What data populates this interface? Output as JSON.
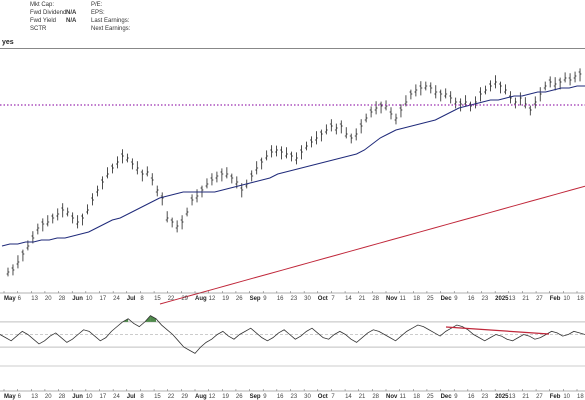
{
  "header": {
    "ticker_suffix": "yes",
    "left_fields": [
      {
        "label": "Mkt Cap:",
        "value": ""
      },
      {
        "label": "Fwd Dividend",
        "value": "N/A"
      },
      {
        "label": "Fwd Yield",
        "value": "N/A"
      },
      {
        "label": "SCTR",
        "value": ""
      }
    ],
    "right_fields": [
      {
        "label": "P/E:"
      },
      {
        "label": "EPS:"
      },
      {
        "label": "Last Earnings:"
      },
      {
        "label": "Next Earnings:"
      }
    ]
  },
  "colors": {
    "price_bar": "#222222",
    "ma_short": "#1f2a7a",
    "ma_long": "#c0273a",
    "support_line": "#9b2db0",
    "osc_line": "#333333",
    "osc_fill": "#4e8a4a",
    "divergence": "#c0273a"
  },
  "chart_data": [
    {
      "type": "line",
      "panel": "price",
      "series": [
        {
          "id": "price",
          "style": "ohlc-bars",
          "values": [
            3,
            4,
            8,
            12,
            16,
            20,
            25,
            27,
            28,
            30,
            32,
            34,
            33,
            30,
            28,
            30,
            34,
            39,
            44,
            48,
            52,
            55,
            58,
            61,
            60,
            57,
            55,
            52,
            53,
            49,
            44,
            40,
            30,
            28,
            26,
            28,
            33,
            39,
            41,
            44,
            47,
            49,
            51,
            52,
            52,
            50,
            48,
            44,
            47,
            51,
            55,
            58,
            61,
            63,
            64,
            63,
            62,
            61,
            60,
            63,
            66,
            68,
            70,
            72,
            74,
            76,
            75,
            76,
            72,
            70,
            72,
            76,
            80,
            83,
            85,
            86,
            86,
            82,
            80,
            84,
            88,
            92,
            94,
            95,
            96,
            95,
            93,
            92,
            92,
            90,
            88,
            87,
            88,
            86,
            88,
            92,
            94,
            96,
            98,
            96,
            94,
            90,
            88,
            90,
            87,
            84,
            88,
            92,
            96,
            98,
            97,
            98,
            100,
            99,
            101,
            102
          ]
        },
        {
          "id": "ma_short",
          "style": "line",
          "values": [
            14,
            15,
            15,
            16,
            16,
            17,
            17,
            18,
            18,
            19,
            20,
            21,
            23,
            25,
            27,
            28,
            30,
            32,
            34,
            36,
            38,
            39,
            40,
            41,
            41,
            41,
            41,
            41,
            42,
            43,
            44,
            45,
            46,
            47,
            48,
            50,
            51,
            52,
            53,
            54,
            55,
            56,
            57,
            58,
            59,
            60,
            62,
            65,
            68,
            70,
            72,
            73,
            74,
            75,
            76,
            77,
            79,
            81,
            83,
            84,
            85,
            86,
            87,
            87,
            88,
            89,
            89,
            90,
            91,
            91,
            92,
            93,
            93,
            94,
            94
          ]
        },
        {
          "id": "ma_long",
          "style": "line",
          "values": [
            0,
            2,
            4,
            6,
            8,
            10,
            12,
            14,
            16,
            18,
            20,
            22,
            24,
            26,
            28,
            30,
            32,
            34,
            36,
            38,
            40,
            42,
            44,
            46,
            48,
            50,
            52,
            54,
            56,
            58,
            60,
            62
          ]
        }
      ],
      "reference_lines": [
        {
          "id": "support",
          "style": "dotted"
        }
      ]
    },
    {
      "type": "area",
      "panel": "oscillator",
      "values": [
        50,
        48,
        46,
        49,
        52,
        50,
        47,
        44,
        46,
        49,
        51,
        48,
        45,
        47,
        50,
        53,
        52,
        49,
        46,
        48,
        52,
        55,
        58,
        60,
        57,
        55,
        58,
        62,
        60,
        56,
        53,
        50,
        46,
        42,
        40,
        38,
        42,
        45,
        47,
        50,
        52,
        49,
        47,
        50,
        52,
        54,
        51,
        48,
        46,
        48,
        51,
        53,
        50,
        47,
        49,
        52,
        54,
        51,
        48,
        47,
        50,
        52,
        50,
        47,
        45,
        48,
        51,
        53,
        52,
        50,
        48,
        46,
        49,
        52,
        54,
        56,
        55,
        53,
        51,
        49,
        52,
        54,
        56,
        55,
        53,
        50,
        48,
        46,
        48,
        50,
        49,
        47,
        46,
        48,
        50,
        49,
        47,
        48,
        50,
        52,
        51,
        49,
        50,
        52,
        51,
        50
      ],
      "reference_lines": [
        {
          "id": "upper"
        },
        {
          "id": "mid"
        },
        {
          "id": "lower"
        }
      ],
      "annotations": [
        {
          "id": "divergence-line",
          "style": "solid-red"
        }
      ]
    }
  ],
  "x_axis_top": [
    {
      "t": "May",
      "b": true
    },
    {
      "t": "6"
    },
    {
      "t": "13"
    },
    {
      "t": "20"
    },
    {
      "t": "28"
    },
    {
      "t": "Jun",
      "b": true
    },
    {
      "t": "10"
    },
    {
      "t": "17"
    },
    {
      "t": "24"
    },
    {
      "t": "Jul",
      "b": true
    },
    {
      "t": "8"
    },
    {
      "t": "15"
    },
    {
      "t": "22"
    },
    {
      "t": "29"
    },
    {
      "t": "Aug",
      "b": true
    },
    {
      "t": "12"
    },
    {
      "t": "19"
    },
    {
      "t": "26"
    },
    {
      "t": "Sep",
      "b": true
    },
    {
      "t": "9"
    },
    {
      "t": "16"
    },
    {
      "t": "23"
    },
    {
      "t": "30"
    },
    {
      "t": "Oct",
      "b": true
    },
    {
      "t": "7"
    },
    {
      "t": "14"
    },
    {
      "t": "21"
    },
    {
      "t": "28"
    },
    {
      "t": "Nov",
      "b": true
    },
    {
      "t": "11"
    },
    {
      "t": "18"
    },
    {
      "t": "25"
    },
    {
      "t": "Dec",
      "b": true
    },
    {
      "t": "9"
    },
    {
      "t": "16"
    },
    {
      "t": "23"
    },
    {
      "t": "2025",
      "b": true
    },
    {
      "t": "13"
    },
    {
      "t": "21"
    },
    {
      "t": "27"
    },
    {
      "t": "Feb",
      "b": true
    },
    {
      "t": "10"
    },
    {
      "t": "18"
    }
  ],
  "x_axis_bottom": [
    {
      "t": "May",
      "b": true
    },
    {
      "t": "6"
    },
    {
      "t": "13"
    },
    {
      "t": "20"
    },
    {
      "t": "28"
    },
    {
      "t": "Jun",
      "b": true
    },
    {
      "t": "10"
    },
    {
      "t": "17"
    },
    {
      "t": "24"
    },
    {
      "t": "Jul",
      "b": true
    },
    {
      "t": "8"
    },
    {
      "t": "15"
    },
    {
      "t": "22"
    },
    {
      "t": "29"
    },
    {
      "t": "Aug",
      "b": true
    },
    {
      "t": "12"
    },
    {
      "t": "19"
    },
    {
      "t": "26"
    },
    {
      "t": "Sep",
      "b": true
    },
    {
      "t": "9"
    },
    {
      "t": "16"
    },
    {
      "t": "23"
    },
    {
      "t": "30"
    },
    {
      "t": "Oct",
      "b": true
    },
    {
      "t": "7"
    },
    {
      "t": "14"
    },
    {
      "t": "21"
    },
    {
      "t": "28"
    },
    {
      "t": "Nov",
      "b": true
    },
    {
      "t": "11"
    },
    {
      "t": "18"
    },
    {
      "t": "25"
    },
    {
      "t": "Dec",
      "b": true
    },
    {
      "t": "9"
    },
    {
      "t": "16"
    },
    {
      "t": "23"
    },
    {
      "t": "2025",
      "b": true
    },
    {
      "t": "13"
    },
    {
      "t": "21"
    },
    {
      "t": "27"
    },
    {
      "t": "Feb",
      "b": true
    },
    {
      "t": "10"
    },
    {
      "t": "18"
    }
  ]
}
